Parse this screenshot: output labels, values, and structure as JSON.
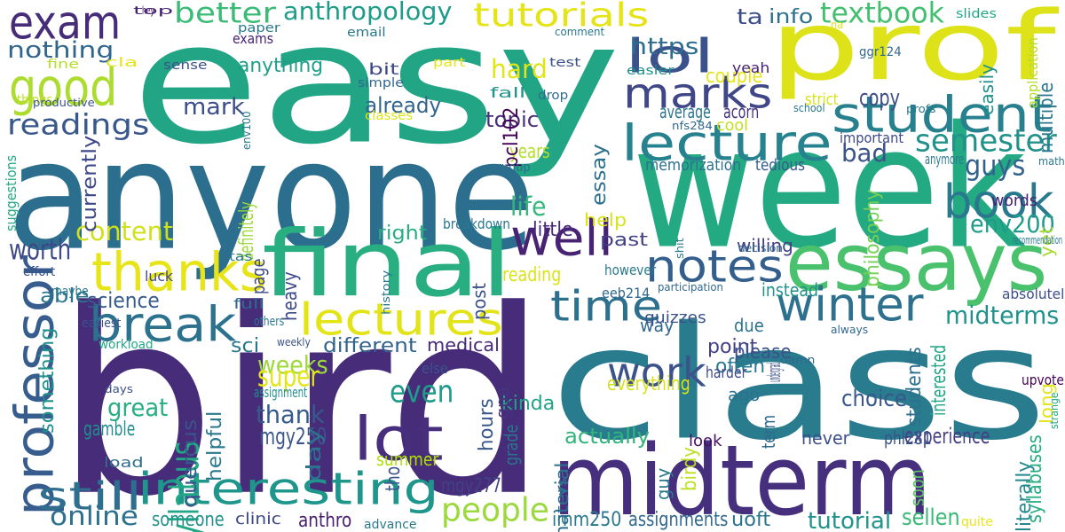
{
  "words": [
    {
      "text": "easy",
      "color": "#21a585"
    },
    {
      "text": "bird",
      "color": "#472c7a"
    },
    {
      "text": "anyone",
      "color": "#2c6e8e"
    },
    {
      "text": "class",
      "color": "#297b8e"
    },
    {
      "text": "prof",
      "color": "#dde318"
    },
    {
      "text": "week",
      "color": "#24aa83"
    },
    {
      "text": "midterm",
      "color": "#46307e"
    },
    {
      "text": "final",
      "color": "#28ae80"
    },
    {
      "text": "essays",
      "color": "#4ac16d"
    },
    {
      "text": "exam",
      "color": "#472c7a"
    },
    {
      "text": "lectures",
      "color": "#e2e418"
    },
    {
      "text": "interesting",
      "color": "#1f968b"
    },
    {
      "text": "thanks",
      "color": "#e7e419"
    },
    {
      "text": "break",
      "color": "#2c728e"
    },
    {
      "text": "good",
      "color": "#addc30"
    },
    {
      "text": "lot",
      "color": "#472f7d"
    },
    {
      "text": "lecture",
      "color": "#26828e"
    },
    {
      "text": "student",
      "color": "#27808e"
    },
    {
      "text": "professor",
      "color": "#365d8d"
    },
    {
      "text": "notes",
      "color": "#345f8d"
    },
    {
      "text": "well",
      "color": "#482374"
    },
    {
      "text": "time",
      "color": "#2d708e"
    },
    {
      "text": "winter",
      "color": "#2d718e"
    },
    {
      "text": "book",
      "color": "#2a788e"
    },
    {
      "text": "marks",
      "color": "#3f4788"
    },
    {
      "text": "lol",
      "color": "#3b518b"
    },
    {
      "text": "work",
      "color": "#3b528b"
    },
    {
      "text": "tutorials",
      "color": "#e5e419"
    },
    {
      "text": "people",
      "color": "#9bd93c"
    },
    {
      "text": "still",
      "color": "#2e6e8e"
    },
    {
      "text": "online",
      "color": "#2c718e"
    },
    {
      "text": "readings",
      "color": "#38588c"
    },
    {
      "text": "semester",
      "color": "#21918c"
    },
    {
      "text": "env200",
      "color": "#1e9b8a"
    },
    {
      "text": "midterms",
      "color": "#20928c"
    },
    {
      "text": "better",
      "color": "#3bbb75"
    },
    {
      "text": "anthropology",
      "color": "#1e9c89"
    },
    {
      "text": "textbook",
      "color": "#44bf70"
    },
    {
      "text": "nothing",
      "color": "#31668e"
    },
    {
      "text": "syllabus",
      "color": "#22a785"
    },
    {
      "text": "guys",
      "color": "#33638d"
    },
    {
      "text": "even",
      "color": "#1e9c89"
    },
    {
      "text": "hard",
      "color": "#e1e418"
    },
    {
      "text": "weeks",
      "color": "#9dd93b"
    },
    {
      "text": "super",
      "color": "#e5e419"
    },
    {
      "text": "thank",
      "color": "#375a8c"
    },
    {
      "text": "content",
      "color": "#d0e11c"
    },
    {
      "text": "worth",
      "color": "#3e4989"
    },
    {
      "text": "https",
      "color": "#2e6d8e"
    },
    {
      "text": "mark",
      "color": "#3c4f8a"
    },
    {
      "text": "bad",
      "color": "#3b528b"
    },
    {
      "text": "copy",
      "color": "#3d4d8a"
    },
    {
      "text": "great",
      "color": "#28ae80"
    },
    {
      "text": "choice",
      "color": "#38588c"
    },
    {
      "text": "quercus",
      "color": "#3a548c"
    },
    {
      "text": "helpful",
      "color": "#2a788e"
    },
    {
      "text": "mgy250",
      "color": "#3a548c"
    },
    {
      "text": "anything",
      "color": "#1f9e89"
    },
    {
      "text": "already",
      "color": "#32658e"
    },
    {
      "text": "life",
      "color": "#35b779"
    },
    {
      "text": "medical",
      "color": "#482878"
    },
    {
      "text": "currently",
      "color": "#3f4889"
    },
    {
      "text": "something",
      "color": "#21918c"
    },
    {
      "text": "right",
      "color": "#28ae80"
    },
    {
      "text": "different",
      "color": "#33638d"
    },
    {
      "text": "point",
      "color": "#424086"
    },
    {
      "text": "essay",
      "color": "#2d708e"
    },
    {
      "text": "multiple",
      "color": "#2a768e"
    },
    {
      "text": "interested",
      "color": "#22a785"
    },
    {
      "text": "students",
      "color": "#2d708e"
    },
    {
      "text": "experience",
      "color": "#433e85"
    },
    {
      "text": "tutorial",
      "color": "#1f948c"
    },
    {
      "text": "summer",
      "color": "#ade000"
    },
    {
      "text": "past",
      "color": "#424086"
    },
    {
      "text": "literally",
      "color": "#23898e"
    },
    {
      "text": "actually",
      "color": "#31b57b"
    },
    {
      "text": "sellen",
      "color": "#3aba76"
    },
    {
      "text": "imm250",
      "color": "#2a788e"
    },
    {
      "text": "science",
      "color": "#375b8d"
    },
    {
      "text": "couple",
      "color": "#e7e419"
    },
    {
      "text": "reading",
      "color": "#dae319"
    },
    {
      "text": "ta",
      "color": "#3c4f8a"
    },
    {
      "text": "info",
      "color": "#2c718e"
    },
    {
      "text": "topic",
      "color": "#472d7b"
    },
    {
      "text": "average",
      "color": "#2b748e"
    },
    {
      "text": "acorn",
      "color": "#46327e"
    },
    {
      "text": "years",
      "color": "#b5de2b"
    },
    {
      "text": "pcl102",
      "color": "#440154"
    },
    {
      "text": "little",
      "color": "#472a7a"
    },
    {
      "text": "way",
      "color": "#31688e"
    },
    {
      "text": "due",
      "color": "#2c728e"
    },
    {
      "text": "often",
      "color": "#297a8e"
    },
    {
      "text": "please",
      "color": "#3b528b"
    },
    {
      "text": "mgy277",
      "color": "#424086"
    },
    {
      "text": "anthro",
      "color": "#481f70"
    },
    {
      "text": "kinda",
      "color": "#20a386"
    },
    {
      "text": "ago",
      "color": "#2c728e"
    },
    {
      "text": "gamble",
      "color": "#228d8d"
    },
    {
      "text": "assignments",
      "color": "#31688e"
    },
    {
      "text": "uoft",
      "color": "#2b748e"
    },
    {
      "text": "never",
      "color": "#3c4f8a"
    },
    {
      "text": "phl281",
      "color": "#3b528b"
    },
    {
      "text": "everything",
      "color": "#d5e21a"
    },
    {
      "text": "hours",
      "color": "#38588c"
    },
    {
      "text": "sci",
      "color": "#2a768e"
    },
    {
      "text": "day",
      "color": "#2c718e"
    },
    {
      "text": "birdy",
      "color": "#bddf26"
    },
    {
      "text": "someone",
      "color": "#21918c"
    },
    {
      "text": "help",
      "color": "#dae319"
    },
    {
      "text": "syllabuses",
      "color": "#26ad81"
    },
    {
      "text": "able",
      "color": "#2b748e"
    },
    {
      "text": "definitely",
      "color": "#a0da39"
    },
    {
      "text": "memorization",
      "color": "#2d718e"
    },
    {
      "text": "tedious",
      "color": "#365c8d"
    },
    {
      "text": "exams",
      "color": "#482173"
    },
    {
      "text": "bit",
      "color": "#3e4989"
    },
    {
      "text": "philosophy",
      "color": "#75d054"
    },
    {
      "text": "important",
      "color": "#3e4a89"
    },
    {
      "text": "soon",
      "color": "#5ec962"
    },
    {
      "text": "clinic",
      "color": "#3e4989"
    },
    {
      "text": "tho",
      "color": "#3b528b"
    },
    {
      "text": "yeah",
      "color": "#482071"
    },
    {
      "text": "cool",
      "color": "#c2df23"
    },
    {
      "text": "harder",
      "color": "#3e4989"
    },
    {
      "text": "heavy",
      "color": "#3e4a89"
    },
    {
      "text": "luck",
      "color": "#3f4889"
    },
    {
      "text": "gpa",
      "color": "#463480"
    },
    {
      "text": "grade",
      "color": "#2a768e"
    },
    {
      "text": "easily",
      "color": "#21908d"
    },
    {
      "text": "material",
      "color": "#2e6f8e"
    },
    {
      "text": "words",
      "color": "#482475"
    },
    {
      "text": "instead",
      "color": "#21918c"
    },
    {
      "text": "willing",
      "color": "#424186"
    },
    {
      "text": "look",
      "color": "#471063"
    },
    {
      "text": "absolutely",
      "color": "#3d4e8a"
    },
    {
      "text": "post",
      "color": "#3b528b"
    },
    {
      "text": "strict",
      "color": "#d8e219"
    },
    {
      "text": "fall",
      "color": "#21918c"
    },
    {
      "text": "load",
      "color": "#2f6c8e"
    },
    {
      "text": "undergrad",
      "color": "#3b528b"
    },
    {
      "text": "anymore",
      "color": "#2a788e"
    },
    {
      "text": "quizzes",
      "color": "#3b528b"
    },
    {
      "text": "however",
      "color": "#2a788e"
    },
    {
      "text": "assignment",
      "color": "#218f8d"
    },
    {
      "text": "else",
      "color": "#3a548c"
    },
    {
      "text": "breakdown",
      "color": "#2a788e"
    },
    {
      "text": "upvote",
      "color": "#440154"
    },
    {
      "text": "long",
      "color": "#e3e418"
    },
    {
      "text": "page",
      "color": "#3e4a89"
    },
    {
      "text": "full",
      "color": "#2f6b8e"
    },
    {
      "text": "eeb214",
      "color": "#31688e"
    },
    {
      "text": "easier",
      "color": "#21908d"
    },
    {
      "text": "easiest",
      "color": "#3b528b"
    },
    {
      "text": "quite",
      "color": "#e7e419"
    },
    {
      "text": "drop",
      "color": "#2f6c8e"
    },
    {
      "text": "yet",
      "color": "#a8db34"
    },
    {
      "text": "guy",
      "color": "#2a788e"
    },
    {
      "text": "term",
      "color": "#31688e"
    },
    {
      "text": "advance",
      "color": "#2a788e"
    },
    {
      "text": "vs",
      "color": "#2a788e"
    },
    {
      "text": "group",
      "color": "#2f6c8e"
    },
    {
      "text": "simple",
      "color": "#31688e"
    },
    {
      "text": "effort",
      "color": "#3b528b"
    },
    {
      "text": "test",
      "color": "#3b528b"
    },
    {
      "text": "maybe",
      "color": "#2a788e"
    },
    {
      "text": "tas",
      "color": "#2a788e"
    },
    {
      "text": "fine",
      "color": "#b5de2b"
    },
    {
      "text": "things",
      "color": "#bddf26"
    },
    {
      "text": "sense",
      "color": "#3b528b"
    },
    {
      "text": "cla",
      "color": "#e7e419"
    },
    {
      "text": "part",
      "color": "#e7e419"
    },
    {
      "text": "classes",
      "color": "#dde318"
    },
    {
      "text": "workload",
      "color": "#22a884"
    },
    {
      "text": "others",
      "color": "#2a788e"
    },
    {
      "text": "suggestions",
      "color": "#22a884"
    },
    {
      "text": "application",
      "color": "#b5de2b"
    },
    {
      "text": "productive",
      "color": "#3b528b"
    },
    {
      "text": "email",
      "color": "#2a788e"
    },
    {
      "text": "paper",
      "color": "#2a788e"
    },
    {
      "text": "top",
      "color": "#482173"
    },
    {
      "text": "hey",
      "color": "#482173"
    },
    {
      "text": "slides",
      "color": "#22a884"
    },
    {
      "text": "comment",
      "color": "#2a788e"
    },
    {
      "text": "na",
      "color": "#dde318"
    },
    {
      "text": "ggr124",
      "color": "#31688e"
    },
    {
      "text": "nfs284",
      "color": "#31688e"
    },
    {
      "text": "profs",
      "color": "#2a788e"
    },
    {
      "text": "school",
      "color": "#2a788e"
    },
    {
      "text": "math",
      "color": "#2a788e"
    },
    {
      "text": "env100",
      "color": "#2a788e"
    },
    {
      "text": "decision",
      "color": "#31688e"
    },
    {
      "text": "recommendation",
      "color": "#2a788e"
    },
    {
      "text": "shit",
      "color": "#2a788e"
    },
    {
      "text": "history",
      "color": "#2a788e"
    },
    {
      "text": "participation",
      "color": "#31688e"
    },
    {
      "text": "always",
      "color": "#31688e"
    },
    {
      "text": "weekly",
      "color": "#3b528b"
    },
    {
      "text": "damn",
      "color": "#31688e"
    },
    {
      "text": "strange",
      "color": "#22a884"
    },
    {
      "text": "days",
      "color": "#3b528b"
    }
  ]
}
